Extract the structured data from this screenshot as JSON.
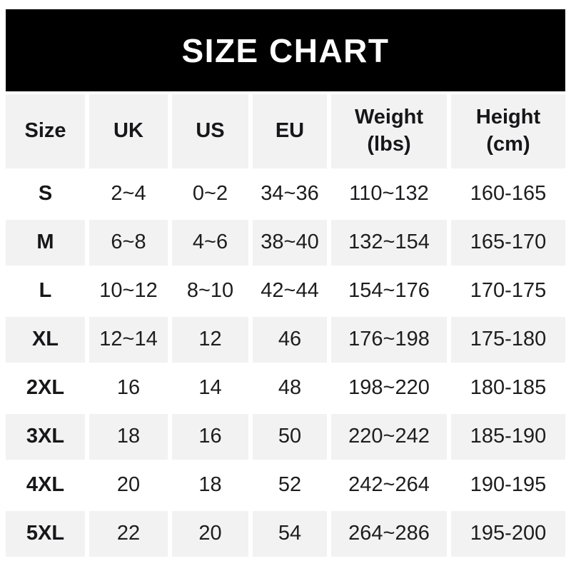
{
  "banner": {
    "title": "SIZE CHART"
  },
  "table": {
    "columns": [
      {
        "label": "Size"
      },
      {
        "label": "UK"
      },
      {
        "label": "US"
      },
      {
        "label": "EU"
      },
      {
        "label": "Weight",
        "unit": "(lbs)"
      },
      {
        "label": "Height",
        "unit": "(cm)"
      }
    ],
    "rows": [
      {
        "size": "S",
        "uk": "2~4",
        "us": "0~2",
        "eu": "34~36",
        "weight": "110~132",
        "height": "160-165"
      },
      {
        "size": "M",
        "uk": "6~8",
        "us": "4~6",
        "eu": "38~40",
        "weight": "132~154",
        "height": "165-170"
      },
      {
        "size": "L",
        "uk": "10~12",
        "us": "8~10",
        "eu": "42~44",
        "weight": "154~176",
        "height": "170-175"
      },
      {
        "size": "XL",
        "uk": "12~14",
        "us": "12",
        "eu": "46",
        "weight": "176~198",
        "height": "175-180"
      },
      {
        "size": "2XL",
        "uk": "16",
        "us": "14",
        "eu": "48",
        "weight": "198~220",
        "height": "180-185"
      },
      {
        "size": "3XL",
        "uk": "18",
        "us": "16",
        "eu": "50",
        "weight": "220~242",
        "height": "185-190"
      },
      {
        "size": "4XL",
        "uk": "20",
        "us": "18",
        "eu": "52",
        "weight": "242~264",
        "height": "190-195"
      },
      {
        "size": "5XL",
        "uk": "22",
        "us": "20",
        "eu": "54",
        "weight": "264~286",
        "height": "195-200"
      }
    ]
  },
  "colors": {
    "banner_bg": "#000000",
    "banner_text": "#ffffff",
    "stripe_bg": "#f2f2f2",
    "text": "#1d1d1f"
  },
  "chart_data": {
    "type": "table",
    "title": "SIZE CHART",
    "columns": [
      "Size",
      "UK",
      "US",
      "EU",
      "Weight (lbs)",
      "Height (cm)"
    ],
    "rows": [
      [
        "S",
        "2~4",
        "0~2",
        "34~36",
        "110~132",
        "160-165"
      ],
      [
        "M",
        "6~8",
        "4~6",
        "38~40",
        "132~154",
        "165-170"
      ],
      [
        "L",
        "10~12",
        "8~10",
        "42~44",
        "154~176",
        "170-175"
      ],
      [
        "XL",
        "12~14",
        "12",
        "46",
        "176~198",
        "175-180"
      ],
      [
        "2XL",
        "16",
        "14",
        "48",
        "198~220",
        "180-185"
      ],
      [
        "3XL",
        "18",
        "16",
        "50",
        "220~242",
        "185-190"
      ],
      [
        "4XL",
        "20",
        "18",
        "52",
        "242~264",
        "190-195"
      ],
      [
        "5XL",
        "22",
        "20",
        "54",
        "264~286",
        "195-200"
      ]
    ],
    "layout": {
      "header_banner": true,
      "row_striping": "even rows gray #f2f2f2",
      "grid": "white gutters between columns"
    }
  }
}
